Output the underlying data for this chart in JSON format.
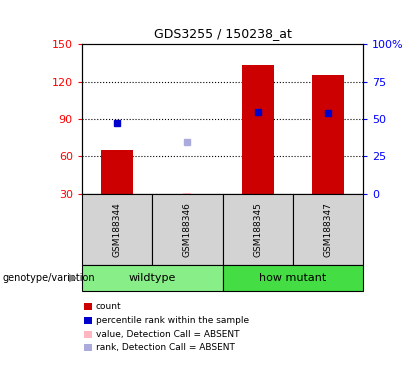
{
  "title": "GDS3255 / 150238_at",
  "samples": [
    "GSM188344",
    "GSM188346",
    "GSM188345",
    "GSM188347"
  ],
  "bar_counts": [
    65,
    null,
    133,
    125
  ],
  "bar_absent_values": [
    null,
    30.8,
    null,
    null
  ],
  "percentile_ranks_left": [
    87,
    null,
    96,
    95
  ],
  "absent_ranks_left": [
    null,
    72,
    null,
    null
  ],
  "ylim_left": [
    30,
    150
  ],
  "ylim_right": [
    0,
    100
  ],
  "yticks_left": [
    30,
    60,
    90,
    120,
    150
  ],
  "yticks_right": [
    0,
    25,
    50,
    75,
    100
  ],
  "ytick_right_labels": [
    "0",
    "25",
    "50",
    "75",
    "100%"
  ],
  "bar_color": "#CC0000",
  "bar_absent_color": "#FFB6C1",
  "rank_color": "#0000CC",
  "rank_absent_color": "#AAAADD",
  "legend_items": [
    {
      "label": "count",
      "color": "#CC0000"
    },
    {
      "label": "percentile rank within the sample",
      "color": "#0000CC"
    },
    {
      "label": "value, Detection Call = ABSENT",
      "color": "#FFB6C1"
    },
    {
      "label": "rank, Detection Call = ABSENT",
      "color": "#AAAADD"
    }
  ],
  "genotype_label": "genotype/variation",
  "groups": [
    {
      "name": "wildtype",
      "start": 0,
      "end": 2,
      "color": "#88EE88"
    },
    {
      "name": "how mutant",
      "start": 2,
      "end": 4,
      "color": "#44DD44"
    }
  ],
  "background_color": "#ffffff",
  "sample_box_color": "#d3d3d3"
}
